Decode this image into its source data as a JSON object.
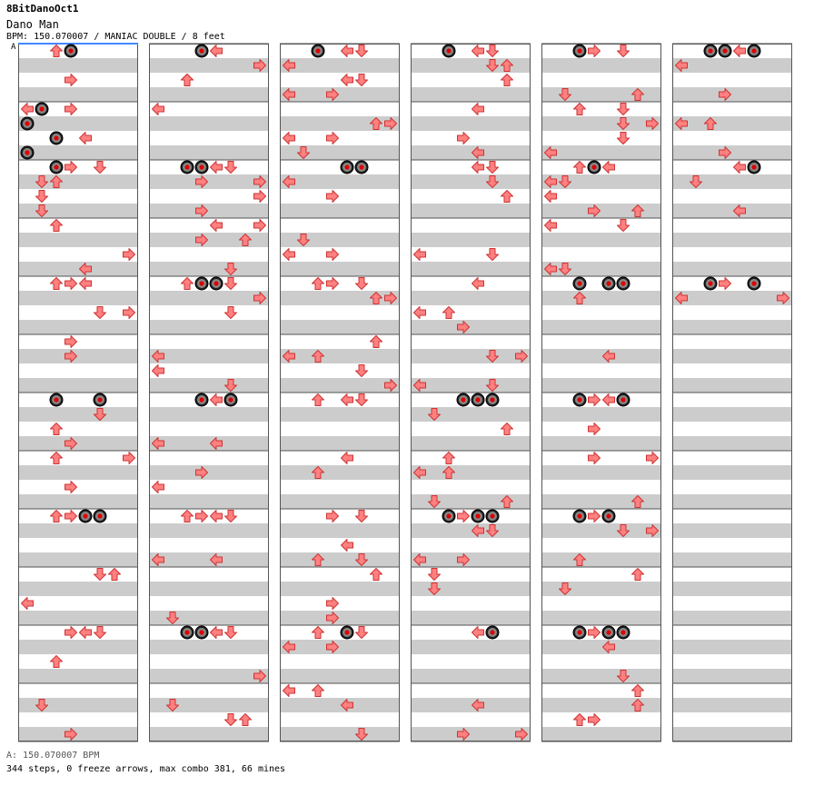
{
  "title": "8BitDanoOct1",
  "artist": "Dano Man",
  "info": "BPM: 150.070007 / MANIAC DOUBLE / 8 feet",
  "bpm_marker": "A",
  "footer_bpm": "A: 150.070007 BPM",
  "footer_stats": "344 steps, 0 freeze arrows, max combo 381, 66 mines",
  "colors": {
    "background": "#ffffff",
    "stripe": "#cccccc",
    "red_note": "#ff8080",
    "blue_note": "#66aaff",
    "pink_note": "#ffaaff",
    "mine": "#222222",
    "bpm_line": "#4488ff"
  },
  "icons": [
    "arrow-left-icon",
    "arrow-down-icon",
    "arrow-up-icon",
    "arrow-right-icon",
    "mine-icon"
  ]
}
